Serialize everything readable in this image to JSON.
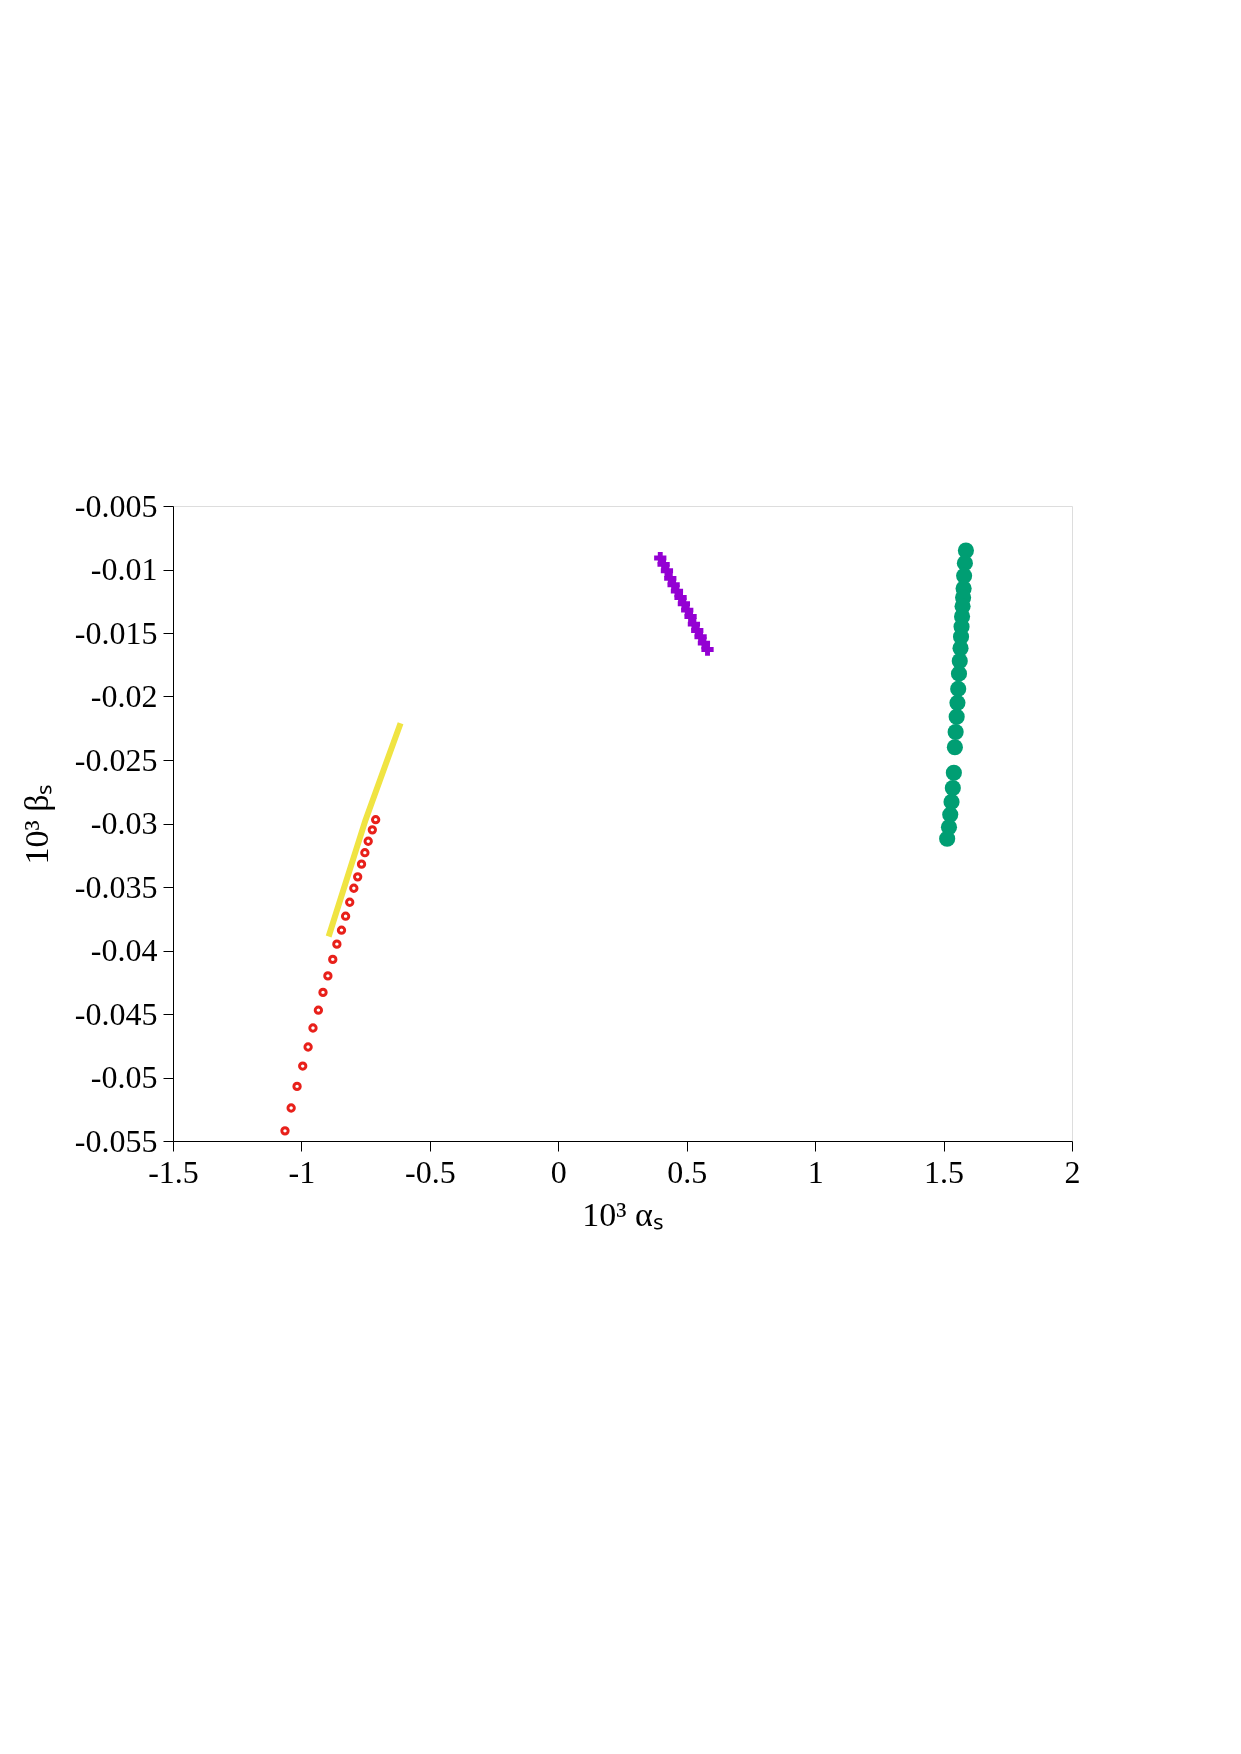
{
  "chart_data": {
    "type": "scatter",
    "xlabel": "10³ αₛ",
    "ylabel": "10³ βₛ",
    "xlim": [
      -1.5,
      2
    ],
    "ylim": [
      -0.055,
      -0.005
    ],
    "xticks": [
      -1.5,
      -1,
      -0.5,
      0,
      0.5,
      1,
      1.5,
      2
    ],
    "yticks": [
      -0.055,
      -0.05,
      -0.045,
      -0.04,
      -0.035,
      -0.03,
      -0.025,
      -0.02,
      -0.015,
      -0.01,
      -0.005
    ],
    "grid": false,
    "legend": false,
    "series": [
      {
        "type": "scatter",
        "marker": "circle",
        "color": "#e8201a",
        "x": [
          -1.064,
          -1.04,
          -1.017,
          -0.995,
          -0.974,
          -0.955,
          -0.934,
          -0.916,
          -0.897,
          -0.878,
          -0.862,
          -0.844,
          -0.828,
          -0.812,
          -0.796,
          -0.781,
          -0.766,
          -0.753,
          -0.74,
          -0.724,
          -0.711
        ],
        "values": [
          -0.0542,
          -0.0524,
          -0.0507,
          -0.0491,
          -0.0476,
          -0.0461,
          -0.0447,
          -0.0433,
          -0.042,
          -0.0407,
          -0.0395,
          -0.0384,
          -0.0373,
          -0.0362,
          -0.0351,
          -0.0342,
          -0.0332,
          -0.0323,
          -0.0314,
          -0.0305,
          -0.0297
        ]
      },
      {
        "type": "line",
        "marker": "none",
        "color": "#f0e442",
        "x": [
          -0.894,
          -0.75,
          -0.614
        ],
        "values": [
          -0.0389,
          -0.0297,
          -0.0221
        ]
      },
      {
        "type": "scatter",
        "marker": "cross",
        "color": "#9400d3",
        "x": [
          0.397,
          0.41,
          0.423,
          0.436,
          0.449,
          0.462,
          0.476,
          0.489,
          0.502,
          0.515,
          0.528,
          0.541,
          0.554,
          0.567,
          0.581
        ],
        "values": [
          -0.0091,
          -0.0096,
          -0.0101,
          -0.0107,
          -0.0112,
          -0.0117,
          -0.0122,
          -0.0127,
          -0.0132,
          -0.0137,
          -0.0143,
          -0.0148,
          -0.0153,
          -0.0158,
          -0.0163
        ]
      },
      {
        "type": "scatter",
        "marker": "circle",
        "color": "#009e73",
        "x": [
          1.587,
          1.583,
          1.58,
          1.578,
          1.576,
          1.574,
          1.572,
          1.57,
          1.568,
          1.566,
          1.563,
          1.56,
          1.557,
          1.554,
          1.551,
          1.547,
          1.544,
          1.54,
          1.536,
          1.531,
          1.526,
          1.521,
          1.514
        ],
        "values": [
          -0.0085,
          -0.0095,
          -0.0105,
          -0.0115,
          -0.0122,
          -0.0129,
          -0.0137,
          -0.0145,
          -0.0153,
          -0.0162,
          -0.0172,
          -0.0182,
          -0.0194,
          -0.0205,
          -0.0216,
          -0.0228,
          -0.024,
          -0.026,
          -0.0272,
          -0.0283,
          -0.0293,
          -0.0303,
          -0.0312
        ]
      }
    ]
  }
}
